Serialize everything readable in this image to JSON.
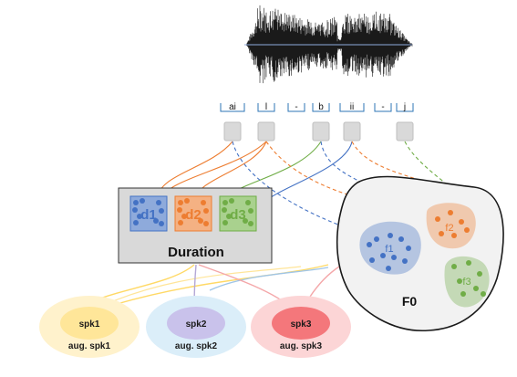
{
  "colors": {
    "blue": "#4472c4",
    "orange": "#ed7d31",
    "green": "#70ad47",
    "yellow": "#ffd966",
    "purple": "#b4a7d6",
    "red": "#f4777b"
  },
  "waveform": {
    "name": "speech-waveform"
  },
  "phonemes": [
    "ai",
    "l",
    "-",
    "b",
    "ii",
    "-",
    "j"
  ],
  "duration": {
    "title": "Duration",
    "clusters": [
      "d1",
      "d2",
      "d3"
    ]
  },
  "f0": {
    "title": "F0",
    "clusters": [
      "f1",
      "f2",
      "f3"
    ]
  },
  "speakers": [
    {
      "label": "spk1",
      "aug_label": "aug. spk1"
    },
    {
      "label": "spk2",
      "aug_label": "aug. spk2"
    },
    {
      "label": "spk3",
      "aug_label": "aug. spk3"
    }
  ]
}
